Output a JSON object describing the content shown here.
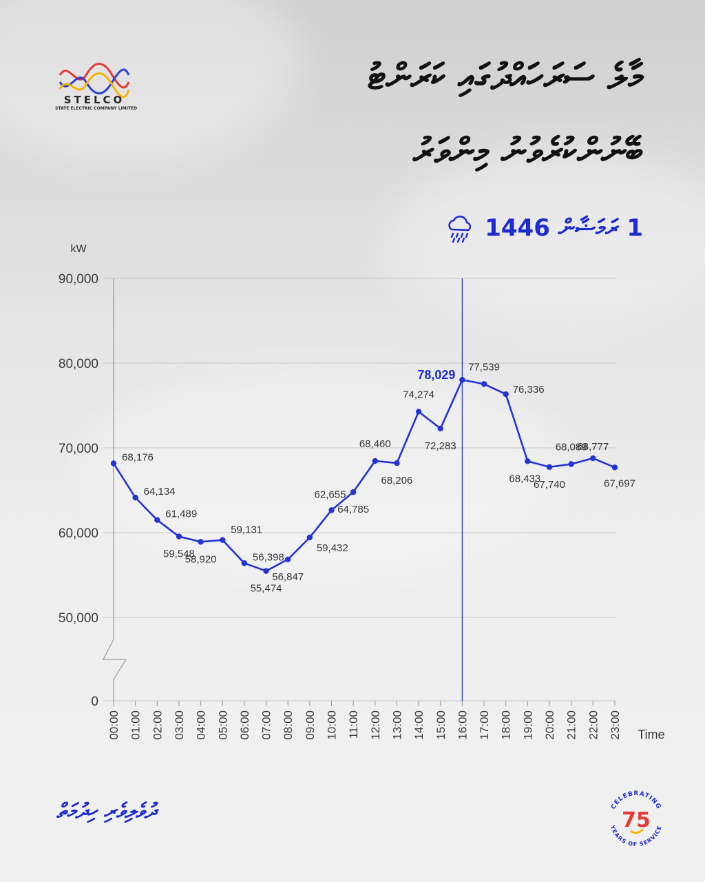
{
  "brand": {
    "logo_name": "STELCO",
    "logo_subtitle": "STATE ELECTRIC COMPANY LIMITED",
    "colors": {
      "red": "#e53935",
      "blue": "#2a3fd6",
      "yellow": "#f5b300"
    }
  },
  "header": {
    "title_line1": "މާލެ ސަރަހައްދުގައި ކަރަންޓު",
    "title_line2": "ބޭނުންކުރެވުނު މިންވަރު",
    "date": "1 ރަމަޟާން 1446",
    "weather_icon": "rain-cloud-icon"
  },
  "chart_data": {
    "type": "line",
    "ylabel": "kW",
    "xlabel": "Time",
    "ylim": [
      0,
      90000
    ],
    "yticks": [
      "90,000",
      "80,000",
      "70,000",
      "60,000",
      "50,000",
      "0"
    ],
    "axis_break": true,
    "grid": true,
    "categories": [
      "00:00",
      "01:00",
      "02:00",
      "03:00",
      "04:00",
      "05:00",
      "06:00",
      "07:00",
      "08:00",
      "09:00",
      "10:00",
      "11:00",
      "12:00",
      "13:00",
      "14:00",
      "15:00",
      "16:00",
      "17:00",
      "18:00",
      "19:00",
      "20:00",
      "21:00",
      "22:00",
      "23:00"
    ],
    "values": [
      68176,
      64134,
      61489,
      59548,
      58920,
      59131,
      56398,
      55474,
      56847,
      59432,
      62655,
      64785,
      68460,
      68206,
      74274,
      72283,
      78029,
      77539,
      76336,
      68433,
      67740,
      68089,
      68777,
      67697
    ],
    "labels": [
      "68,176",
      "64,134",
      "61,489",
      "59,548",
      "58,920",
      "59,131",
      "56,398",
      "55,474",
      "56,847",
      "59,432",
      "62,655",
      "64,785",
      "68,460",
      "68,206",
      "74,274",
      "72,283",
      "78,029",
      "77,539",
      "76,336",
      "68,433",
      "67,740",
      "68,089",
      "68,777",
      "67,697"
    ],
    "peak_index": 16,
    "line_color": "#2433d6"
  },
  "footer": {
    "slogan": "ދުވެލިވެރި ހިދުމަތް",
    "badge_top": "CELEBRATING",
    "badge_bottom": "YEARS OF SERVICE",
    "badge_number": "75"
  }
}
